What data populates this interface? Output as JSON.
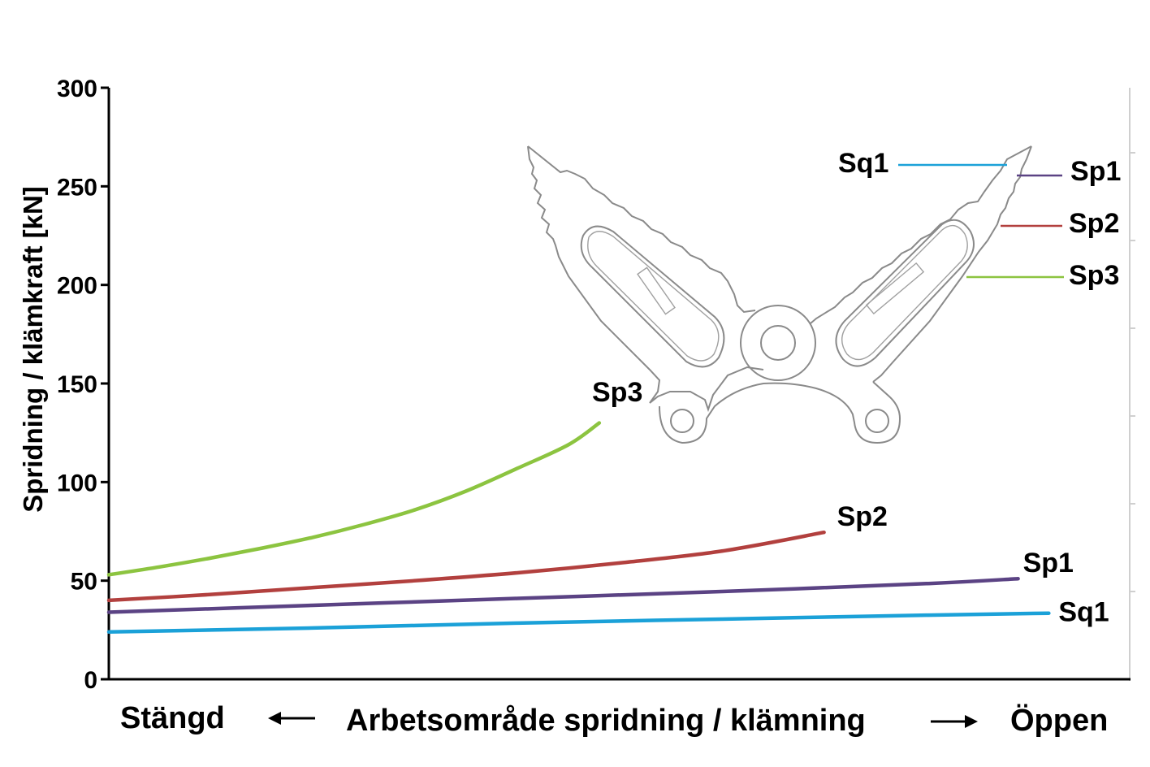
{
  "chart_data": {
    "type": "line",
    "ylabel": "Spridning / klämkraft [kN]",
    "ylim": [
      0,
      300
    ],
    "yticks": [
      "0",
      "50",
      "100",
      "150",
      "200",
      "250",
      "300"
    ],
    "x_axis": {
      "left_label": "Stängd",
      "center_label": "Arbetsområde spridning / klämning",
      "right_label": "Öppen",
      "xlim": [
        0,
        100
      ]
    },
    "series": [
      {
        "name": "Sq1",
        "color": "#1ba1d8",
        "x": [
          0,
          20,
          40,
          60,
          80,
          92
        ],
        "y": [
          24,
          26,
          28.5,
          30.5,
          32.5,
          33.5
        ]
      },
      {
        "name": "Sp1",
        "color": "#5b4384",
        "x": [
          0,
          20,
          40,
          60,
          80,
          89
        ],
        "y": [
          34,
          37.5,
          41,
          44.5,
          48.5,
          51
        ]
      },
      {
        "name": "Sp2",
        "color": "#b2403e",
        "x": [
          0,
          10,
          20,
          30,
          40,
          50,
          60,
          70
        ],
        "y": [
          40,
          43,
          46.5,
          50,
          54,
          59,
          65,
          74.5
        ]
      },
      {
        "name": "Sp3",
        "color": "#8cc440",
        "x": [
          0,
          5,
          10,
          15,
          20,
          25,
          30,
          35,
          40,
          45,
          48
        ],
        "y": [
          53,
          57,
          61.5,
          66.5,
          72,
          78.5,
          86,
          95.5,
          107,
          119,
          130
        ]
      }
    ],
    "tool_callouts": [
      {
        "name": "Sq1",
        "color": "#1ba1d8"
      },
      {
        "name": "Sp1",
        "color": "#5b4384"
      },
      {
        "name": "Sp2",
        "color": "#b2403e"
      },
      {
        "name": "Sp3",
        "color": "#8cc440"
      }
    ]
  }
}
